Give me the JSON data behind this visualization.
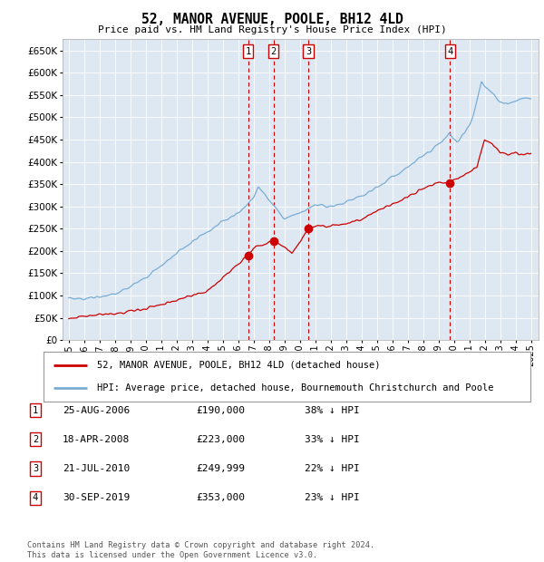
{
  "title": "52, MANOR AVENUE, POOLE, BH12 4LD",
  "subtitle": "Price paid vs. HM Land Registry's House Price Index (HPI)",
  "ylim": [
    0,
    675000
  ],
  "yticks": [
    0,
    50000,
    100000,
    150000,
    200000,
    250000,
    300000,
    350000,
    400000,
    450000,
    500000,
    550000,
    600000,
    650000
  ],
  "xtick_years": [
    1995,
    1996,
    1997,
    1998,
    1999,
    2000,
    2001,
    2002,
    2003,
    2004,
    2005,
    2006,
    2007,
    2008,
    2009,
    2010,
    2011,
    2012,
    2013,
    2014,
    2015,
    2016,
    2017,
    2018,
    2019,
    2020,
    2021,
    2022,
    2023,
    2024,
    2025
  ],
  "sales": [
    {
      "label": "1",
      "date": 2006.65,
      "price": 190000
    },
    {
      "label": "2",
      "date": 2008.29,
      "price": 223000
    },
    {
      "label": "3",
      "date": 2010.55,
      "price": 249999
    },
    {
      "label": "4",
      "date": 2019.75,
      "price": 353000
    }
  ],
  "legend_line1": "52, MANOR AVENUE, POOLE, BH12 4LD (detached house)",
  "legend_line2": "HPI: Average price, detached house, Bournemouth Christchurch and Poole",
  "table": [
    {
      "num": "1",
      "date": "25-AUG-2006",
      "price": "£190,000",
      "pct": "38% ↓ HPI"
    },
    {
      "num": "2",
      "date": "18-APR-2008",
      "price": "£223,000",
      "pct": "33% ↓ HPI"
    },
    {
      "num": "3",
      "date": "21-JUL-2010",
      "price": "£249,999",
      "pct": "22% ↓ HPI"
    },
    {
      "num": "4",
      "date": "30-SEP-2019",
      "price": "£353,000",
      "pct": "23% ↓ HPI"
    }
  ],
  "footnote": "Contains HM Land Registry data © Crown copyright and database right 2024.\nThis data is licensed under the Open Government Licence v3.0.",
  "hpi_color": "#7aadd4",
  "sales_line_color": "#cc0000",
  "vline_color": "#cc0000",
  "box_edge_color": "#cc0000",
  "grid_color": "#ffffff",
  "bg_color": "#dde8f3",
  "fig_bg": "#ffffff"
}
